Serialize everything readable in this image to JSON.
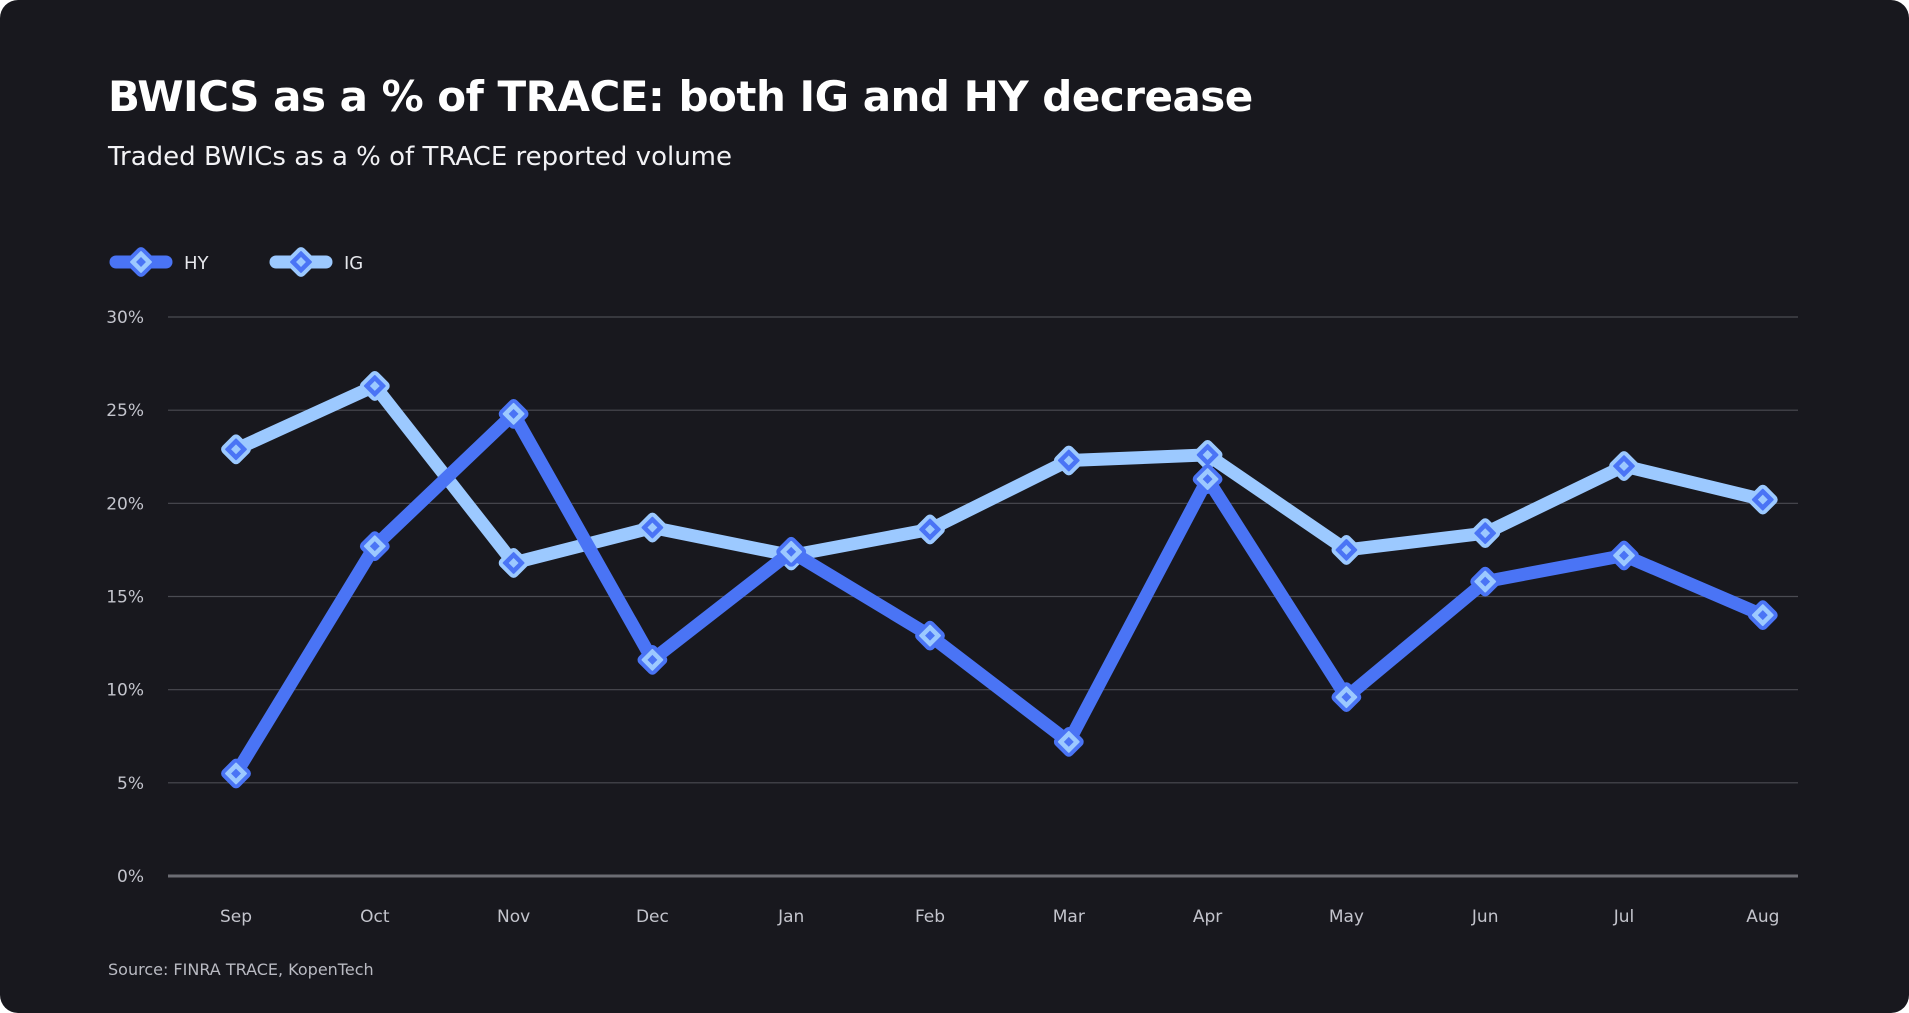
{
  "title": "BWICS as a % of TRACE: both IG and HY decrease",
  "subtitle": "Traded BWICs as a % of TRACE reported volume",
  "source": "Source: FINRA TRACE, KopenTech",
  "colors": {
    "background": "#18181e",
    "hy_line": "#4a74f5",
    "ig_line": "#9cc9ff",
    "grid": "#4a4b52"
  },
  "chart_data": {
    "type": "line",
    "categories": [
      "Sep",
      "Oct",
      "Nov",
      "Dec",
      "Jan",
      "Feb",
      "Mar",
      "Apr",
      "May",
      "Jun",
      "Jul",
      "Aug"
    ],
    "series": [
      {
        "name": "HY",
        "color": "#4a74f5",
        "marker_fill": "#9cc9ff",
        "values": [
          5.5,
          17.7,
          24.8,
          11.6,
          17.4,
          12.9,
          7.2,
          21.3,
          9.6,
          15.8,
          17.2,
          14.0
        ]
      },
      {
        "name": "IG",
        "color": "#9cc9ff",
        "marker_fill": "#4a74f5",
        "values": [
          22.9,
          26.3,
          16.8,
          18.7,
          17.2,
          18.6,
          22.3,
          22.6,
          17.5,
          18.4,
          22.0,
          20.2
        ]
      }
    ],
    "ylim": [
      0,
      30
    ],
    "yticks": [
      0,
      5,
      10,
      15,
      20,
      25,
      30
    ],
    "ytick_labels": [
      "0%",
      "5%",
      "10%",
      "15%",
      "20%",
      "25%",
      "30%"
    ],
    "xlabel": "",
    "ylabel": "",
    "grid": true,
    "legend": "top-left",
    "marker": "diamond"
  }
}
